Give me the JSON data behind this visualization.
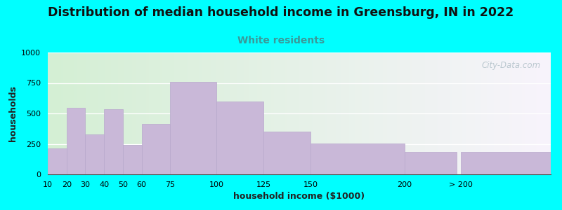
{
  "title": "Distribution of median household income in Greensburg, IN in 2022",
  "subtitle": "White residents",
  "xlabel": "household income ($1000)",
  "ylabel": "households",
  "background_outer": "#00FFFF",
  "background_inner_left": "#d4efd4",
  "background_inner_right": "#f8f4fc",
  "bar_color": "#c9b8d8",
  "bar_edge_color": "#b8a8cc",
  "title_fontsize": 12.5,
  "subtitle_fontsize": 10,
  "subtitle_color": "#3a9999",
  "ylabel_fontsize": 9,
  "xlabel_fontsize": 9,
  "watermark": "City-Data.com",
  "categories": [
    "10",
    "20",
    "30",
    "40",
    "50",
    "60",
    "75",
    "100",
    "125",
    "150",
    "200",
    "> 200"
  ],
  "values": [
    210,
    545,
    330,
    535,
    240,
    415,
    760,
    600,
    350,
    255,
    185,
    185
  ],
  "ylim": [
    0,
    1000
  ],
  "yticks": [
    0,
    250,
    500,
    750,
    1000
  ],
  "bar_lefts": [
    10,
    20,
    30,
    40,
    50,
    60,
    75,
    100,
    125,
    150,
    200,
    230
  ],
  "bar_rights": [
    20,
    30,
    40,
    50,
    60,
    75,
    100,
    125,
    150,
    200,
    228,
    278
  ],
  "tick_positions": [
    10,
    20,
    30,
    40,
    50,
    60,
    75,
    100,
    125,
    150,
    200,
    230
  ],
  "xlim": [
    10,
    278
  ]
}
